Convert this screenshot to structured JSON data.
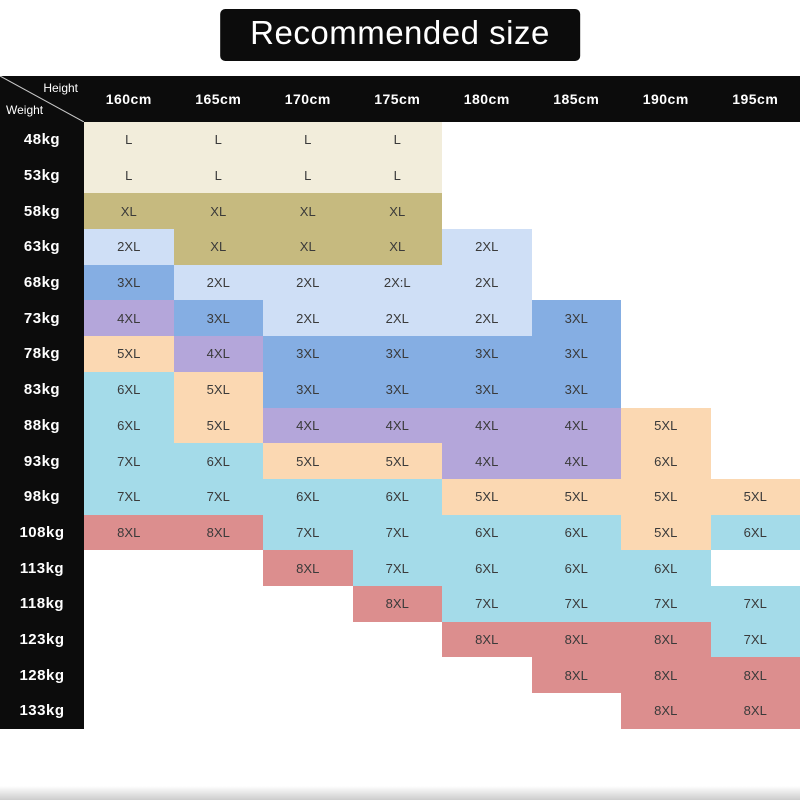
{
  "title": "Recommended size",
  "corner": {
    "top_label": "Height",
    "bottom_label": "Weight"
  },
  "size_colors": {
    "cream": "#f2eddb",
    "khaki": "#c6ba7f",
    "lightblue": "#cfdff6",
    "blue": "#85aee3",
    "purple": "#b4a6da",
    "peach": "#fbd8b2",
    "cyan": "#a4dbe9",
    "pink": "#dc8e8e"
  },
  "chart_data": {
    "type": "table",
    "title": "Recommended size",
    "column_header": "Height",
    "row_header": "Weight",
    "columns": [
      "160cm",
      "165cm",
      "170cm",
      "175cm",
      "180cm",
      "185cm",
      "190cm",
      "195cm"
    ],
    "rows": [
      "48kg",
      "53kg",
      "58kg",
      "63kg",
      "68kg",
      "73kg",
      "78kg",
      "83kg",
      "88kg",
      "93kg",
      "98kg",
      "108kg",
      "113kg",
      "118kg",
      "123kg",
      "128kg",
      "133kg"
    ],
    "cells": [
      [
        {
          "v": "L",
          "c": "cream"
        },
        {
          "v": "L",
          "c": "cream"
        },
        {
          "v": "L",
          "c": "cream"
        },
        {
          "v": "L",
          "c": "cream"
        },
        null,
        null,
        null,
        null
      ],
      [
        {
          "v": "L",
          "c": "cream"
        },
        {
          "v": "L",
          "c": "cream"
        },
        {
          "v": "L",
          "c": "cream"
        },
        {
          "v": "L",
          "c": "cream"
        },
        null,
        null,
        null,
        null
      ],
      [
        {
          "v": "XL",
          "c": "khaki"
        },
        {
          "v": "XL",
          "c": "khaki"
        },
        {
          "v": "XL",
          "c": "khaki"
        },
        {
          "v": "XL",
          "c": "khaki"
        },
        null,
        null,
        null,
        null
      ],
      [
        {
          "v": "2XL",
          "c": "lightblue"
        },
        {
          "v": "XL",
          "c": "khaki"
        },
        {
          "v": "XL",
          "c": "khaki"
        },
        {
          "v": "XL",
          "c": "khaki"
        },
        {
          "v": "2XL",
          "c": "lightblue"
        },
        null,
        null,
        null
      ],
      [
        {
          "v": "3XL",
          "c": "blue"
        },
        {
          "v": "2XL",
          "c": "lightblue"
        },
        {
          "v": "2XL",
          "c": "lightblue"
        },
        {
          "v": "2X:L",
          "c": "lightblue"
        },
        {
          "v": "2XL",
          "c": "lightblue"
        },
        null,
        null,
        null
      ],
      [
        {
          "v": "4XL",
          "c": "purple"
        },
        {
          "v": "3XL",
          "c": "blue"
        },
        {
          "v": "2XL",
          "c": "lightblue"
        },
        {
          "v": "2XL",
          "c": "lightblue"
        },
        {
          "v": "2XL",
          "c": "lightblue"
        },
        {
          "v": "3XL",
          "c": "blue"
        },
        null,
        null
      ],
      [
        {
          "v": "5XL",
          "c": "peach"
        },
        {
          "v": "4XL",
          "c": "purple"
        },
        {
          "v": "3XL",
          "c": "blue"
        },
        {
          "v": "3XL",
          "c": "blue"
        },
        {
          "v": "3XL",
          "c": "blue"
        },
        {
          "v": "3XL",
          "c": "blue"
        },
        null,
        null
      ],
      [
        {
          "v": "6XL",
          "c": "cyan"
        },
        {
          "v": "5XL",
          "c": "peach"
        },
        {
          "v": "3XL",
          "c": "blue"
        },
        {
          "v": "3XL",
          "c": "blue"
        },
        {
          "v": "3XL",
          "c": "blue"
        },
        {
          "v": "3XL",
          "c": "blue"
        },
        null,
        null
      ],
      [
        {
          "v": "6XL",
          "c": "cyan"
        },
        {
          "v": "5XL",
          "c": "peach"
        },
        {
          "v": "4XL",
          "c": "purple"
        },
        {
          "v": "4XL",
          "c": "purple"
        },
        {
          "v": "4XL",
          "c": "purple"
        },
        {
          "v": "4XL",
          "c": "purple"
        },
        {
          "v": "5XL",
          "c": "peach"
        },
        null
      ],
      [
        {
          "v": "7XL",
          "c": "cyan"
        },
        {
          "v": "6XL",
          "c": "cyan"
        },
        {
          "v": "5XL",
          "c": "peach"
        },
        {
          "v": "5XL",
          "c": "peach"
        },
        {
          "v": "4XL",
          "c": "purple"
        },
        {
          "v": "4XL",
          "c": "purple"
        },
        {
          "v": "6XL",
          "c": "peach"
        },
        null
      ],
      [
        {
          "v": "7XL",
          "c": "cyan"
        },
        {
          "v": "7XL",
          "c": "cyan"
        },
        {
          "v": "6XL",
          "c": "cyan"
        },
        {
          "v": "6XL",
          "c": "cyan"
        },
        {
          "v": "5XL",
          "c": "peach"
        },
        {
          "v": "5XL",
          "c": "peach"
        },
        {
          "v": "5XL",
          "c": "peach"
        },
        {
          "v": "5XL",
          "c": "peach"
        }
      ],
      [
        {
          "v": "8XL",
          "c": "pink"
        },
        {
          "v": "8XL",
          "c": "pink"
        },
        {
          "v": "7XL",
          "c": "cyan"
        },
        {
          "v": "7XL",
          "c": "cyan"
        },
        {
          "v": "6XL",
          "c": "cyan"
        },
        {
          "v": "6XL",
          "c": "cyan"
        },
        {
          "v": "5XL",
          "c": "peach"
        },
        {
          "v": "6XL",
          "c": "cyan"
        }
      ],
      [
        null,
        null,
        {
          "v": "8XL",
          "c": "pink"
        },
        {
          "v": "7XL",
          "c": "cyan"
        },
        {
          "v": "6XL",
          "c": "cyan"
        },
        {
          "v": "6XL",
          "c": "cyan"
        },
        {
          "v": "6XL",
          "c": "cyan"
        },
        null
      ],
      [
        null,
        null,
        null,
        {
          "v": "8XL",
          "c": "pink"
        },
        {
          "v": "7XL",
          "c": "cyan"
        },
        {
          "v": "7XL",
          "c": "cyan"
        },
        {
          "v": "7XL",
          "c": "cyan"
        },
        {
          "v": "7XL",
          "c": "cyan"
        }
      ],
      [
        null,
        null,
        null,
        null,
        {
          "v": "8XL",
          "c": "pink"
        },
        {
          "v": "8XL",
          "c": "pink"
        },
        {
          "v": "8XL",
          "c": "pink"
        },
        {
          "v": "7XL",
          "c": "cyan"
        }
      ],
      [
        null,
        null,
        null,
        null,
        null,
        {
          "v": "8XL",
          "c": "pink"
        },
        {
          "v": "8XL",
          "c": "pink"
        },
        {
          "v": "8XL",
          "c": "pink"
        }
      ],
      [
        null,
        null,
        null,
        null,
        null,
        null,
        {
          "v": "8XL",
          "c": "pink"
        },
        {
          "v": "8XL",
          "c": "pink"
        }
      ]
    ]
  }
}
